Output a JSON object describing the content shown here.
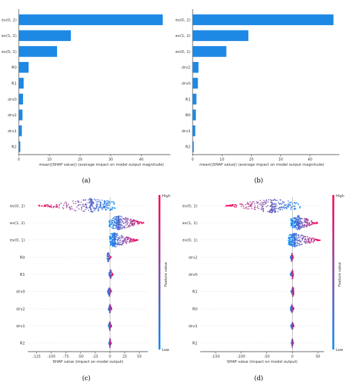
{
  "colors": {
    "bar": "#1e88e5",
    "bar_edge": "#0d6fd1",
    "axis": "#333333",
    "high": "#ff0052",
    "low": "#008bfb",
    "grid_line": "#999999"
  },
  "captions": [
    "(a)",
    "(b)",
    "(c)",
    "(d)"
  ],
  "colorbar": {
    "high": "High",
    "low": "Low",
    "label": "Feature value"
  },
  "chart_data": [
    {
      "type": "bar",
      "orientation": "horizontal",
      "caption": "(a)",
      "categories": [
        "ev(0, 2)",
        "ev(1, 2)",
        "ev(0, 1)",
        "R0",
        "R1",
        "drv0",
        "drv2",
        "drv1",
        "R2"
      ],
      "values": [
        47,
        17,
        12.5,
        3.2,
        1.6,
        1.4,
        1.2,
        1.0,
        0.5
      ],
      "xlabel": "mean(|SHAP value|) (average impact on model output magnitude)",
      "xticks": [
        0,
        10,
        20,
        30,
        40
      ],
      "xlim": [
        0,
        49.5
      ]
    },
    {
      "type": "bar",
      "orientation": "horizontal",
      "caption": "(b)",
      "categories": [
        "ev(0, 2)",
        "ev(1, 2)",
        "ev(0, 1)",
        "drv2",
        "drv0",
        "R1",
        "R0",
        "drv1",
        "R2"
      ],
      "values": [
        48,
        19,
        11.5,
        2.0,
        1.8,
        1.3,
        1.1,
        0.9,
        0.4
      ],
      "xlabel": "mean(|SHAP value|) (average impact on model output magnitude)",
      "xticks": [
        0,
        10,
        20,
        30,
        40
      ],
      "xlim": [
        0,
        50
      ]
    },
    {
      "type": "scatter",
      "subtype": "beeswarm",
      "caption": "(c)",
      "categories": [
        "ev(0, 2)",
        "ev(1, 2)",
        "ev(0, 1)",
        "R0",
        "R1",
        "drv0",
        "drv2",
        "drv1",
        "R2"
      ],
      "ranges": [
        [
          -122,
          10
        ],
        [
          -2,
          58
        ],
        [
          -1,
          48
        ],
        [
          -5,
          2
        ],
        [
          -2,
          5
        ],
        [
          -4,
          3
        ],
        [
          -3,
          3
        ],
        [
          -3,
          3
        ],
        [
          -2,
          2
        ]
      ],
      "peaks": [
        -33,
        15,
        8,
        -3,
        1,
        -1,
        0,
        0,
        0
      ],
      "xlabel": "SHAP value (impact on model output)",
      "xticks": [
        -125,
        -100,
        -75,
        -50,
        -25,
        0,
        25,
        50
      ],
      "xlim": [
        -140,
        65
      ]
    },
    {
      "type": "scatter",
      "subtype": "beeswarm",
      "caption": "(d)",
      "categories": [
        "ev(0, 2)",
        "ev(1, 2)",
        "ev(0, 1)",
        "drv2",
        "drv0",
        "R1",
        "R0",
        "drv1",
        "R2"
      ],
      "ranges": [
        [
          -130,
          15
        ],
        [
          -3,
          50
        ],
        [
          -8,
          55
        ],
        [
          -4,
          2
        ],
        [
          -4,
          2
        ],
        [
          -3,
          3
        ],
        [
          -4,
          3
        ],
        [
          -3,
          3
        ],
        [
          -2,
          2
        ]
      ],
      "peaks": [
        -40,
        12,
        5,
        -1,
        0,
        1,
        -1,
        0,
        0
      ],
      "xlabel": "SHAP value (impact on model output)",
      "xticks": [
        -150,
        -100,
        -50,
        0,
        50
      ],
      "xlim": [
        -180,
        62
      ]
    }
  ]
}
